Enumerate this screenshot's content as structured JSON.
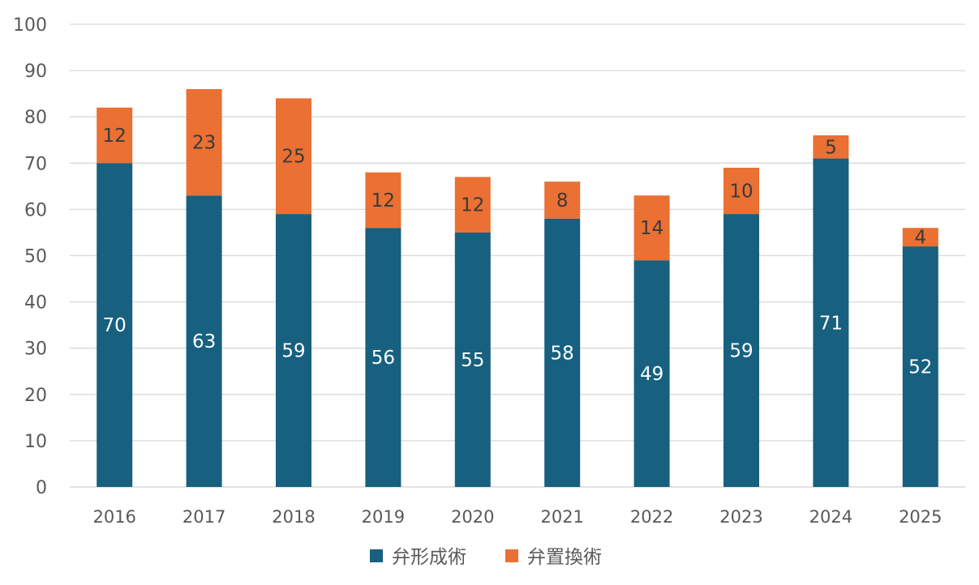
{
  "chart_data": {
    "type": "bar",
    "stacked": true,
    "title": "",
    "xlabel": "",
    "ylabel": "",
    "categories": [
      "2016",
      "2017",
      "2018",
      "2019",
      "2020",
      "2021",
      "2022",
      "2023",
      "2024",
      "2025"
    ],
    "series": [
      {
        "name": "弁形成術",
        "color": "#17607F",
        "label_color": "#ffffff",
        "values": [
          70,
          63,
          59,
          56,
          55,
          58,
          49,
          59,
          71,
          52
        ]
      },
      {
        "name": "弁置換術",
        "color": "#EA7033",
        "label_color": "#3a3a3a",
        "values": [
          12,
          23,
          25,
          12,
          12,
          8,
          14,
          10,
          5,
          4
        ]
      }
    ],
    "ylim": [
      0,
      100
    ],
    "yticks": [
      0,
      10,
      20,
      30,
      40,
      50,
      60,
      70,
      80,
      90,
      100
    ],
    "grid": true,
    "legend_position": "bottom-center",
    "data_labels": true
  }
}
